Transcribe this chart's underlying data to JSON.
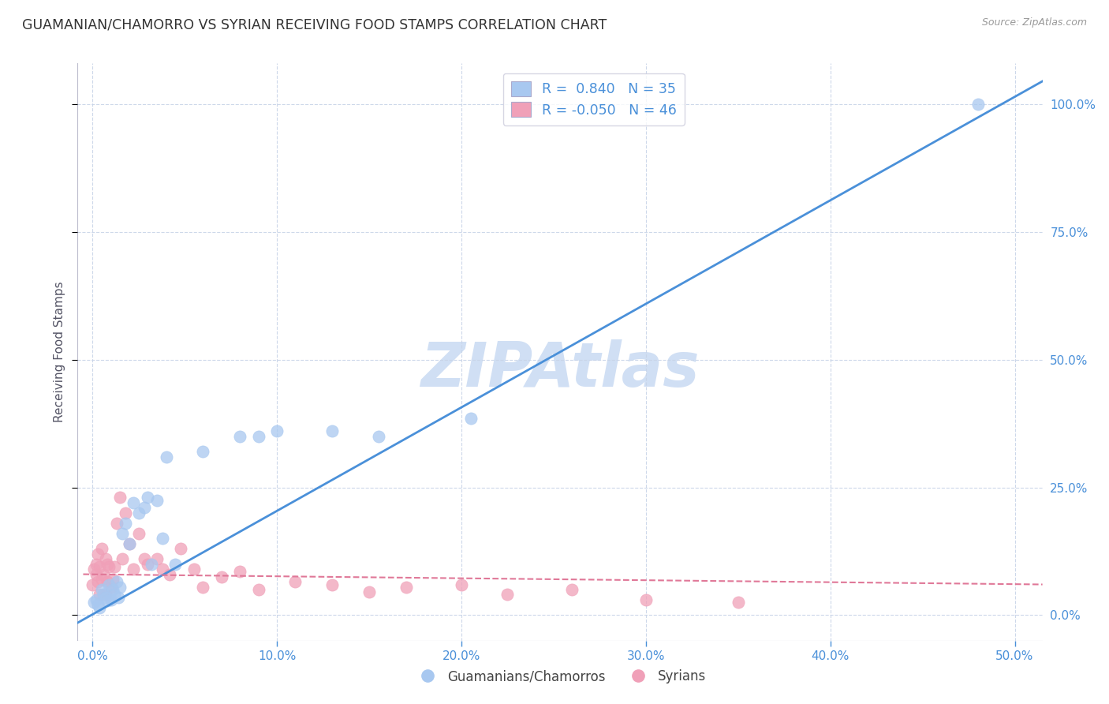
{
  "title": "GUAMANIAN/CHAMORRO VS SYRIAN RECEIVING FOOD STAMPS CORRELATION CHART",
  "source": "Source: ZipAtlas.com",
  "xlabel_ticks": [
    "0.0%",
    "10.0%",
    "20.0%",
    "30.0%",
    "40.0%",
    "50.0%"
  ],
  "ylabel_ticks": [
    "0.0%",
    "25.0%",
    "50.0%",
    "75.0%",
    "100.0%"
  ],
  "xlabel_vals": [
    0.0,
    0.1,
    0.2,
    0.3,
    0.4,
    0.5
  ],
  "ylabel_vals": [
    0.0,
    0.25,
    0.5,
    0.75,
    1.0
  ],
  "xlim": [
    -0.008,
    0.515
  ],
  "ylim": [
    -0.05,
    1.08
  ],
  "ylabel": "Receiving Food Stamps",
  "legend_label1": "Guamanians/Chamorros",
  "legend_label2": "Syrians",
  "r1": 0.84,
  "n1": 35,
  "r2": -0.05,
  "n2": 46,
  "color_blue": "#A8C8F0",
  "color_pink": "#F0A0B8",
  "color_line_blue": "#4A90D9",
  "color_line_pink": "#E07898",
  "watermark_color": "#D0DFF4",
  "background_color": "#FFFFFF",
  "guam_x": [
    0.001,
    0.002,
    0.003,
    0.004,
    0.005,
    0.006,
    0.007,
    0.008,
    0.009,
    0.01,
    0.011,
    0.012,
    0.013,
    0.014,
    0.015,
    0.016,
    0.018,
    0.02,
    0.022,
    0.025,
    0.028,
    0.03,
    0.032,
    0.035,
    0.038,
    0.04,
    0.045,
    0.06,
    0.08,
    0.09,
    0.1,
    0.13,
    0.155,
    0.205,
    0.48
  ],
  "guam_y": [
    0.025,
    0.03,
    0.02,
    0.015,
    0.05,
    0.04,
    0.035,
    0.028,
    0.06,
    0.03,
    0.05,
    0.04,
    0.065,
    0.035,
    0.055,
    0.16,
    0.18,
    0.14,
    0.22,
    0.2,
    0.21,
    0.23,
    0.1,
    0.225,
    0.15,
    0.31,
    0.1,
    0.32,
    0.35,
    0.35,
    0.36,
    0.36,
    0.35,
    0.385,
    1.0
  ],
  "syrian_x": [
    0.0,
    0.001,
    0.002,
    0.002,
    0.003,
    0.003,
    0.004,
    0.004,
    0.005,
    0.005,
    0.006,
    0.007,
    0.007,
    0.008,
    0.008,
    0.009,
    0.01,
    0.011,
    0.012,
    0.013,
    0.015,
    0.016,
    0.018,
    0.02,
    0.022,
    0.025,
    0.028,
    0.03,
    0.035,
    0.038,
    0.042,
    0.048,
    0.055,
    0.06,
    0.07,
    0.08,
    0.09,
    0.11,
    0.13,
    0.15,
    0.17,
    0.2,
    0.225,
    0.26,
    0.3,
    0.35
  ],
  "syrian_y": [
    0.06,
    0.09,
    0.08,
    0.1,
    0.065,
    0.12,
    0.04,
    0.095,
    0.07,
    0.13,
    0.08,
    0.04,
    0.11,
    0.065,
    0.1,
    0.095,
    0.055,
    0.07,
    0.095,
    0.18,
    0.23,
    0.11,
    0.2,
    0.14,
    0.09,
    0.16,
    0.11,
    0.1,
    0.11,
    0.09,
    0.08,
    0.13,
    0.09,
    0.055,
    0.075,
    0.085,
    0.05,
    0.065,
    0.06,
    0.045,
    0.055,
    0.06,
    0.04,
    0.05,
    0.03,
    0.025
  ],
  "blue_line_x": [
    -0.008,
    0.515
  ],
  "blue_line_y": [
    -0.015,
    1.045
  ],
  "pink_line_x": [
    -0.005,
    0.515
  ],
  "pink_line_y": [
    0.08,
    0.06
  ]
}
